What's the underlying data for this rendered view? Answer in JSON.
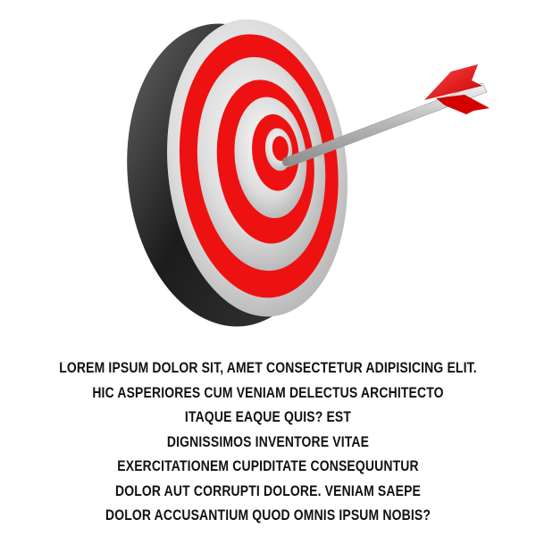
{
  "illustration": {
    "icon": "target-with-arrow-icon",
    "colors": {
      "ring_red": "#ee1111",
      "ring_silver": "#d9d9d9",
      "rim_dark": "#2a2a2a",
      "arrow_shaft": "#bfbfbf",
      "fletching": "#ee1111"
    }
  },
  "caption": {
    "lines": [
      "LOREM IPSUM DOLOR SIT, AMET CONSECTETUR ADIPISICING ELIT.",
      "HIC ASPERIORES CUM VENIAM DELECTUS ARCHITECTO",
      "ITAQUE EAQUE QUIS? EST",
      "DIGNISSIMOS INVENTORE VITAE",
      "EXERCITATIONEM CUPIDITATE CONSEQUUNTUR",
      "DOLOR AUT CORRUPTI DOLORE. VENIAM SAEPE",
      "DOLOR ACCUSANTIUM QUOD OMNIS IPSUM NOBIS?"
    ]
  }
}
